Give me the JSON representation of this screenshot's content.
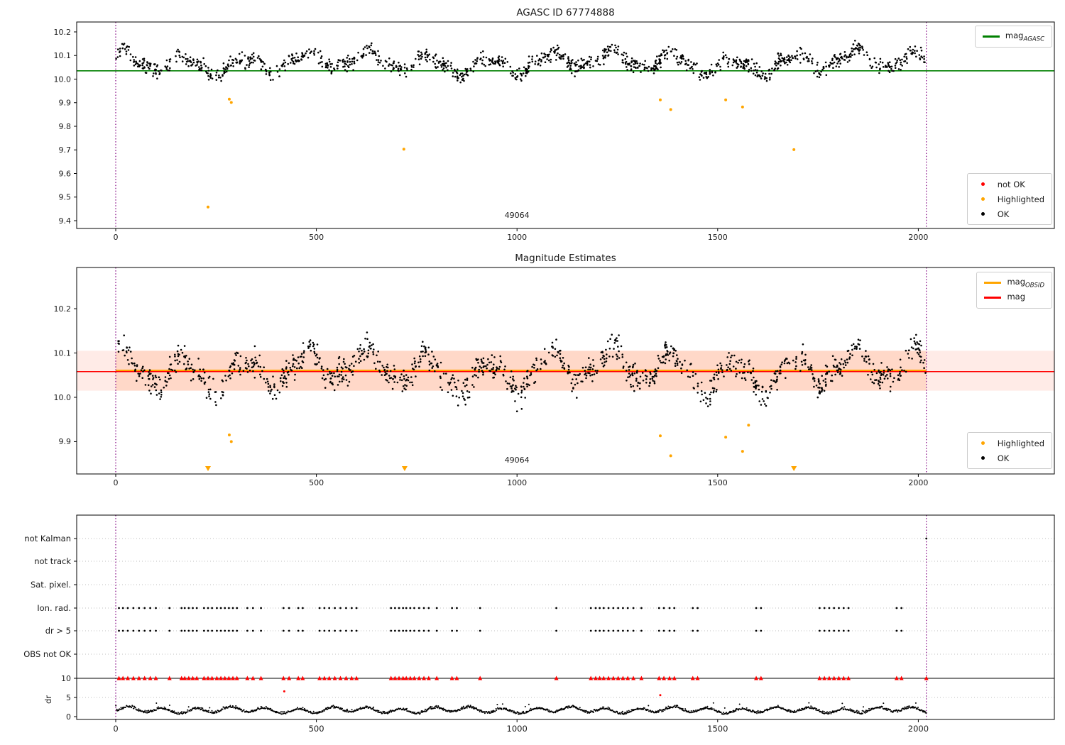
{
  "colors": {
    "ok_marker": "#000000",
    "not_ok_marker": "#ff0000",
    "highlighted_marker": "#ffa500",
    "mag_agasc_line": "#008000",
    "mag_line": "#ff0000",
    "mag_obsid_line": "#ffa500",
    "obsid_band": "rgba(255,90,60,0.12)",
    "obsid_band_inner": "rgba(255,140,80,0.20)",
    "vline": "#800080",
    "axis": "#000000",
    "grid": "#aaaaaa",
    "text": "#1a1a1a"
  },
  "chart_data": [
    {
      "type": "scatter",
      "title": "AGASC ID 67774888",
      "xlabel": "",
      "ylabel": "",
      "xlim": [
        -97,
        2340
      ],
      "ylim": [
        9.367,
        10.242
      ],
      "xticks": [
        0,
        500,
        1000,
        1500,
        2000
      ],
      "yticks": [
        10.2,
        10.1,
        10.0,
        9.9,
        9.8,
        9.7,
        9.6,
        9.5,
        9.4
      ],
      "grid": false,
      "legend_positions": [
        "upper right",
        "lower right"
      ],
      "line_legend": [
        {
          "base": "mag",
          "sub": "AGASC"
        }
      ],
      "marker_legend": [
        {
          "label": "not OK"
        },
        {
          "label": "Highlighted"
        },
        {
          "label": "OK"
        }
      ],
      "annotation": {
        "text": "49064",
        "x": 1000
      },
      "mag_agasc": 10.035,
      "vlines": [
        0,
        2020
      ],
      "ok_series": {
        "n": 1300,
        "seed": 13,
        "x_min": 0,
        "x_max": 2020,
        "mean": 10.07,
        "w1a": 0.034,
        "w1p": 152,
        "ph1": 0.8,
        "w2a": 0.016,
        "w2p": 640,
        "ph2": 2.1,
        "w3a": 0.012,
        "w3p": 68,
        "noise": 0.015,
        "clip": [
          9.965,
          10.175
        ]
      },
      "highlighted_points": [
        [
          230,
          9.458
        ],
        [
          283,
          9.915
        ],
        [
          288,
          9.901
        ],
        [
          718,
          9.703
        ],
        [
          1357,
          9.912
        ],
        [
          1383,
          9.871
        ],
        [
          1520,
          9.912
        ],
        [
          1562,
          9.882
        ],
        [
          1690,
          9.701
        ]
      ]
    },
    {
      "type": "scatter",
      "title": "Magnitude Estimates",
      "xlabel": "",
      "ylabel": "",
      "xlim": [
        -97,
        2340
      ],
      "ylim": [
        9.827,
        10.293
      ],
      "xticks": [
        0,
        500,
        1000,
        1500,
        2000
      ],
      "yticks": [
        10.2,
        10.1,
        10.0,
        9.9
      ],
      "grid": false,
      "legend_positions": [
        "upper right",
        "lower right"
      ],
      "line_legend": [
        {
          "base": "mag",
          "sub": "OBSID"
        },
        {
          "base": "mag",
          "sub": ""
        }
      ],
      "marker_legend": [
        {
          "label": "Highlighted"
        },
        {
          "label": "OK"
        }
      ],
      "annotation": {
        "text": "49064",
        "x": 1000
      },
      "mag": 10.058,
      "mag_obsid": 10.06,
      "band": [
        10.015,
        10.105
      ],
      "vlines": [
        0,
        2020
      ],
      "ok_series": {
        "n": 1300,
        "seed": 29,
        "x_min": 0,
        "x_max": 2020,
        "mean": 10.06,
        "w1a": 0.034,
        "w1p": 152,
        "ph1": 0.8,
        "w2a": 0.016,
        "w2p": 640,
        "ph2": 2.1,
        "w3a": 0.012,
        "w3p": 68,
        "noise": 0.015,
        "clip": [
          9.955,
          10.17
        ]
      },
      "highlighted_points": [
        [
          283,
          9.915
        ],
        [
          288,
          9.9
        ],
        [
          1357,
          9.913
        ],
        [
          1383,
          9.868
        ],
        [
          1520,
          9.91
        ],
        [
          1562,
          9.878
        ],
        [
          1577,
          9.937
        ]
      ],
      "triangles_x": [
        230,
        720,
        1690
      ]
    },
    {
      "type": "scatter",
      "title": "",
      "xlabel": "",
      "ylabel": "dr",
      "xticks": [
        0,
        500,
        1000,
        1500,
        2000
      ],
      "categories": [
        "not Kalman",
        "not track",
        "Sat. pixel.",
        "Ion. rad.",
        "dr > 5",
        "OBS not OK"
      ],
      "dr_ticks": [
        10,
        5,
        0
      ],
      "dr_hline": 10,
      "vlines": [
        0,
        2020
      ],
      "flags": {
        "not_kalman_x": [
          2020
        ],
        "ion_rad_x": [
          8,
          18,
          30,
          44,
          58,
          72,
          86,
          100,
          134,
          164,
          172,
          182,
          192,
          202,
          220,
          230,
          240,
          252,
          262,
          272,
          282,
          292,
          302,
          328,
          342,
          362,
          418,
          432,
          455,
          466,
          508,
          520,
          532,
          546,
          560,
          574,
          588,
          600,
          686,
          696,
          706,
          716,
          724,
          734,
          744,
          756,
          768,
          780,
          800,
          838,
          850,
          908,
          1098,
          1184,
          1196,
          1206,
          1216,
          1228,
          1240,
          1252,
          1264,
          1276,
          1290,
          1310,
          1354,
          1366,
          1380,
          1392,
          1438,
          1450,
          1596,
          1608,
          1754,
          1766,
          1778,
          1790,
          1802,
          1814,
          1826,
          1946,
          1958
        ],
        "dr5_x": [
          8,
          18,
          30,
          44,
          58,
          72,
          86,
          100,
          134,
          164,
          172,
          182,
          192,
          202,
          220,
          230,
          240,
          252,
          262,
          272,
          282,
          292,
          302,
          328,
          342,
          362,
          418,
          432,
          455,
          466,
          508,
          520,
          532,
          546,
          560,
          574,
          588,
          600,
          686,
          696,
          706,
          716,
          724,
          734,
          744,
          756,
          768,
          780,
          800,
          838,
          850,
          908,
          1098,
          1184,
          1196,
          1206,
          1216,
          1228,
          1240,
          1252,
          1264,
          1276,
          1290,
          1310,
          1354,
          1366,
          1380,
          1392,
          1438,
          1450,
          1596,
          1608,
          1754,
          1766,
          1778,
          1790,
          1802,
          1814,
          1826,
          1946,
          1958
        ],
        "dr_clipped_x": [
          8,
          18,
          30,
          44,
          58,
          72,
          86,
          100,
          134,
          164,
          172,
          182,
          192,
          202,
          220,
          230,
          240,
          252,
          262,
          272,
          282,
          292,
          302,
          328,
          342,
          362,
          418,
          432,
          455,
          466,
          508,
          520,
          532,
          546,
          560,
          574,
          588,
          600,
          686,
          696,
          706,
          716,
          724,
          734,
          744,
          756,
          768,
          780,
          800,
          838,
          850,
          908,
          1098,
          1184,
          1196,
          1206,
          1216,
          1228,
          1240,
          1252,
          1264,
          1276,
          1290,
          1310,
          1354,
          1366,
          1380,
          1392,
          1438,
          1450,
          1596,
          1608,
          1754,
          1766,
          1778,
          1790,
          1802,
          1814,
          1826,
          1946,
          1958,
          2020
        ]
      },
      "not_ok_points": [
        [
          420,
          6.6
        ],
        [
          1357,
          5.6
        ]
      ],
      "dr_series": {
        "n": 1500,
        "seed": 99,
        "x_min": 0,
        "x_max": 2020,
        "base": 0.55,
        "a1": 1.25,
        "f1": 0.037,
        "p1": 0.4,
        "a2": 0.55,
        "f2": 0.0115,
        "p2": 1.2,
        "noise": 0.3,
        "clip": [
          0.05,
          4.8
        ]
      }
    }
  ]
}
